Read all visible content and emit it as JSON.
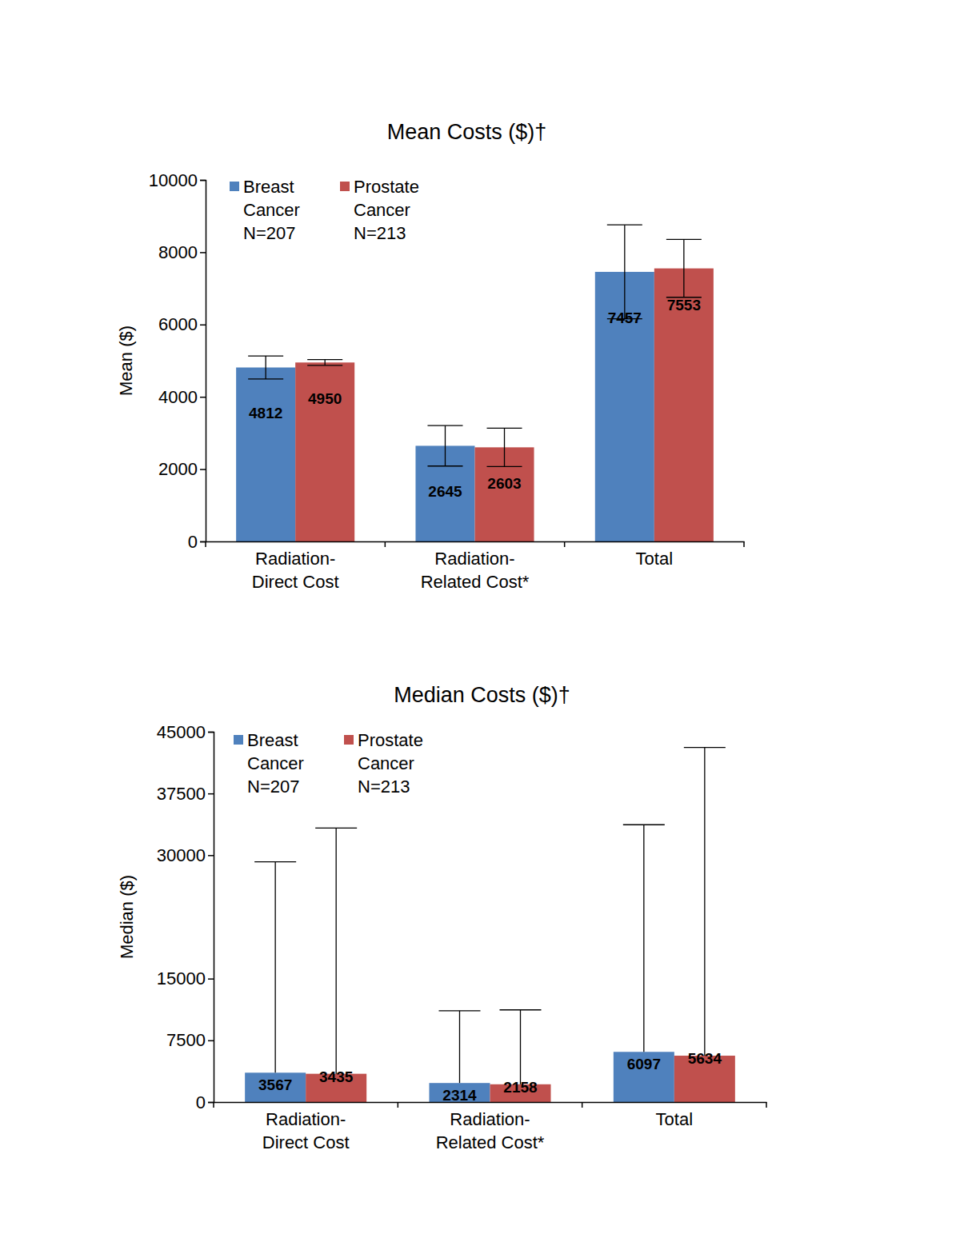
{
  "chart_data": [
    {
      "type": "bar",
      "title": "Mean Costs ($)†",
      "y_label": "Mean ($)",
      "categories": [
        "Radiation-Direct Cost",
        "Radiation-Related Cost*",
        "Total"
      ],
      "series": [
        {
          "name": "Breast Cancer N=207",
          "color": "#4f81bd",
          "values": [
            4812,
            2645,
            7457
          ],
          "errors": [
            320,
            560,
            1300
          ]
        },
        {
          "name": "Prostate Cancer N=213",
          "color": "#c0504d",
          "values": [
            4950,
            2603,
            7553
          ],
          "errors": [
            80,
            530,
            800
          ]
        }
      ],
      "ylim": [
        0,
        10000
      ],
      "yticks": [
        0,
        2000,
        4000,
        6000,
        8000,
        10000
      ],
      "legend": "top-left",
      "data_labels": true,
      "grid": false
    },
    {
      "type": "bar",
      "title": "Median Costs ($)†",
      "y_label": "Median ($)",
      "categories": [
        "Radiation-Direct Cost",
        "Radiation-Related Cost*",
        "Total"
      ],
      "series": [
        {
          "name": "Breast Cancer N=207",
          "color": "#4f81bd",
          "values": [
            3567,
            2314,
            6097
          ],
          "max": [
            29200,
            11100,
            33700
          ]
        },
        {
          "name": "Prostate Cancer N=213",
          "color": "#c0504d",
          "values": [
            3435,
            2158,
            5634
          ],
          "max": [
            33300,
            11200,
            43100
          ]
        }
      ],
      "ylim": [
        0,
        45000
      ],
      "yticks": [
        0,
        7500,
        15000,
        30000,
        37500,
        45000
      ],
      "legend": "top-left",
      "data_labels": true,
      "grid": false
    }
  ]
}
